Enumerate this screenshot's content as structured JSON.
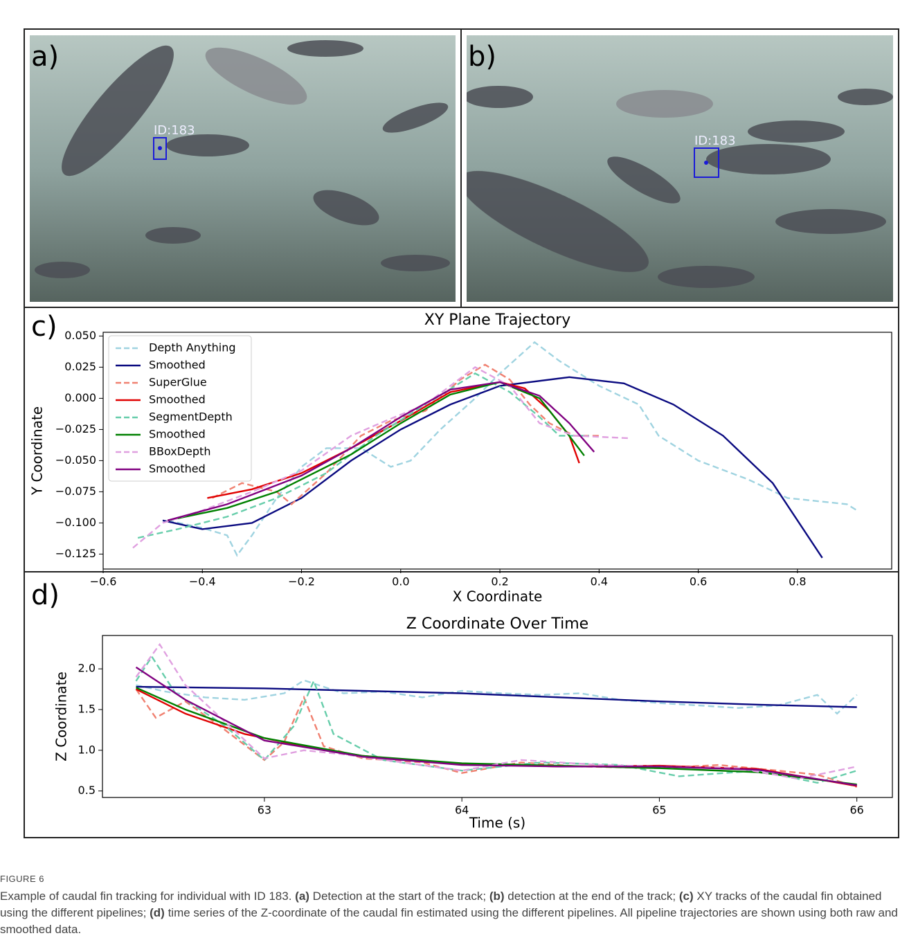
{
  "panels": [
    {
      "label": "a)",
      "id_label": "ID:183"
    },
    {
      "label": "b)",
      "id_label": "ID:183"
    }
  ],
  "chart_data": [
    {
      "type": "line",
      "panel_label": "c)",
      "title": "XY Plane Trajectory",
      "x_label": "X Coordinate",
      "y_label": "Y Coordinate",
      "xlim": [
        -0.6,
        0.99
      ],
      "ylim": [
        -0.137,
        0.053
      ],
      "xticks": [
        {
          "value": -0.6,
          "label": "−0.6"
        },
        {
          "value": -0.4,
          "label": "−0.4"
        },
        {
          "value": -0.2,
          "label": "−0.2"
        },
        {
          "value": 0,
          "label": "0.0"
        },
        {
          "value": 0.2,
          "label": "0.2"
        },
        {
          "value": 0.4,
          "label": "0.4"
        },
        {
          "value": 0.6,
          "label": "0.6"
        },
        {
          "value": 0.8,
          "label": "0.8"
        }
      ],
      "yticks": [
        {
          "value": 0.05,
          "label": "0.050"
        },
        {
          "value": 0.025,
          "label": "0.025"
        },
        {
          "value": 0,
          "label": "0.000"
        },
        {
          "value": -0.025,
          "label": "−0.025"
        },
        {
          "value": -0.05,
          "label": "−0.050"
        },
        {
          "value": -0.075,
          "label": "−0.075"
        },
        {
          "value": -0.1,
          "label": "−0.100"
        },
        {
          "value": -0.125,
          "label": "−0.125"
        }
      ],
      "legend": "upper left",
      "series": [
        {
          "name": "Depth Anything",
          "color": "#9fd3e0",
          "dashed": true,
          "x": [
            -0.47,
            -0.4,
            -0.35,
            -0.33,
            -0.3,
            -0.25,
            -0.2,
            -0.15,
            -0.08,
            -0.02,
            0.02,
            0.08,
            0.15,
            0.2,
            0.27,
            0.32,
            0.4,
            0.48,
            0.52,
            0.6,
            0.7,
            0.78,
            0.9,
            0.92
          ],
          "values": [
            -0.098,
            -0.104,
            -0.11,
            -0.126,
            -0.11,
            -0.08,
            -0.055,
            -0.04,
            -0.04,
            -0.055,
            -0.05,
            -0.025,
            0.0,
            0.02,
            0.045,
            0.03,
            0.01,
            -0.005,
            -0.03,
            -0.05,
            -0.065,
            -0.08,
            -0.085,
            -0.09
          ]
        },
        {
          "name": "Smoothed",
          "color": "#0a0a80",
          "dashed": false,
          "x": [
            -0.48,
            -0.4,
            -0.3,
            -0.2,
            -0.1,
            0.0,
            0.1,
            0.2,
            0.34,
            0.45,
            0.55,
            0.65,
            0.75,
            0.85
          ],
          "values": [
            -0.098,
            -0.105,
            -0.1,
            -0.08,
            -0.05,
            -0.025,
            -0.005,
            0.01,
            0.017,
            0.012,
            -0.005,
            -0.03,
            -0.068,
            -0.128
          ]
        },
        {
          "name": "SuperGlue",
          "color": "#f08070",
          "dashed": true,
          "x": [
            -0.38,
            -0.32,
            -0.25,
            -0.22,
            -0.15,
            -0.08,
            -0.02,
            0.05,
            0.12,
            0.17,
            0.22,
            0.26,
            0.3,
            0.35,
            0.4
          ],
          "values": [
            -0.08,
            -0.068,
            -0.075,
            -0.085,
            -0.06,
            -0.03,
            -0.018,
            -0.01,
            0.015,
            0.027,
            0.015,
            -0.005,
            -0.02,
            -0.03,
            -0.03
          ]
        },
        {
          "name": "Smoothed",
          "color": "#e00000",
          "dashed": false,
          "x": [
            -0.39,
            -0.3,
            -0.2,
            -0.1,
            0.0,
            0.1,
            0.2,
            0.25,
            0.3,
            0.34,
            0.36
          ],
          "values": [
            -0.08,
            -0.073,
            -0.06,
            -0.04,
            -0.018,
            0.005,
            0.013,
            0.008,
            -0.01,
            -0.03,
            -0.052
          ]
        },
        {
          "name": "SegmentDepth",
          "color": "#66cdaa",
          "dashed": true,
          "x": [
            -0.53,
            -0.45,
            -0.35,
            -0.25,
            -0.15,
            -0.05,
            0.05,
            0.15,
            0.22,
            0.28,
            0.32,
            0.38
          ],
          "values": [
            -0.112,
            -0.105,
            -0.095,
            -0.08,
            -0.06,
            -0.03,
            -0.005,
            0.02,
            0.005,
            -0.015,
            -0.03,
            -0.03
          ]
        },
        {
          "name": "Smoothed",
          "color": "#008000",
          "dashed": false,
          "x": [
            -0.47,
            -0.35,
            -0.25,
            -0.1,
            0.0,
            0.1,
            0.2,
            0.28,
            0.33,
            0.37
          ],
          "values": [
            -0.098,
            -0.088,
            -0.075,
            -0.045,
            -0.02,
            0.003,
            0.013,
            0.0,
            -0.025,
            -0.046
          ]
        },
        {
          "name": "BBoxDepth",
          "color": "#e0a0e0",
          "dashed": true,
          "x": [
            -0.54,
            -0.48,
            -0.4,
            -0.3,
            -0.2,
            -0.1,
            -0.03,
            0.05,
            0.15,
            0.22,
            0.28,
            0.35,
            0.46
          ],
          "values": [
            -0.12,
            -0.1,
            -0.09,
            -0.075,
            -0.058,
            -0.03,
            -0.018,
            -0.005,
            0.025,
            0.01,
            -0.02,
            -0.03,
            -0.032
          ]
        },
        {
          "name": "Smoothed",
          "color": "#800080",
          "dashed": false,
          "x": [
            -0.47,
            -0.35,
            -0.2,
            -0.1,
            0.0,
            0.1,
            0.2,
            0.28,
            0.34,
            0.39
          ],
          "values": [
            -0.098,
            -0.085,
            -0.062,
            -0.04,
            -0.015,
            0.007,
            0.013,
            0.002,
            -0.02,
            -0.043
          ]
        }
      ]
    },
    {
      "type": "line",
      "panel_label": "d)",
      "title": "Z Coordinate Over Time",
      "x_label": "Time (s)",
      "y_label": "Z Coordinate",
      "xlim": [
        62.18,
        66.18
      ],
      "ylim": [
        0.42,
        2.41
      ],
      "xticks": [
        63,
        64,
        65,
        66
      ],
      "yticks": [
        0.5,
        {
          "value": 1,
          "label": "1.0"
        },
        1.5,
        {
          "value": 2,
          "label": "2.0"
        }
      ],
      "series": [
        {
          "color": "#9fd3e0",
          "dashed": true,
          "x": [
            62.35,
            62.5,
            62.7,
            62.9,
            63.1,
            63.2,
            63.4,
            63.6,
            63.8,
            64,
            64.2,
            64.4,
            64.6,
            64.8,
            65,
            65.2,
            65.4,
            65.6,
            65.8,
            65.9,
            66
          ],
          "values": [
            1.8,
            1.72,
            1.65,
            1.62,
            1.7,
            1.86,
            1.7,
            1.72,
            1.65,
            1.73,
            1.7,
            1.68,
            1.7,
            1.62,
            1.58,
            1.55,
            1.52,
            1.55,
            1.68,
            1.45,
            1.68
          ]
        },
        {
          "color": "#0a0a80",
          "dashed": false,
          "x": [
            62.35,
            63,
            63.5,
            64,
            64.5,
            65,
            65.5,
            66
          ],
          "values": [
            1.78,
            1.76,
            1.73,
            1.7,
            1.65,
            1.6,
            1.56,
            1.53
          ]
        },
        {
          "color": "#f08070",
          "dashed": true,
          "x": [
            62.35,
            62.45,
            62.6,
            62.8,
            63,
            63.1,
            63.2,
            63.3,
            63.5,
            63.8,
            64,
            64.3,
            64.6,
            65,
            65.3,
            65.6,
            65.8,
            66
          ],
          "values": [
            1.75,
            1.4,
            1.6,
            1.25,
            0.88,
            1.1,
            1.65,
            1.05,
            0.9,
            0.85,
            0.72,
            0.85,
            0.8,
            0.78,
            0.82,
            0.75,
            0.7,
            0.55
          ]
        },
        {
          "color": "#e00000",
          "dashed": false,
          "x": [
            62.35,
            62.6,
            62.9,
            63.2,
            63.5,
            64,
            64.5,
            65,
            65.5,
            66
          ],
          "values": [
            1.75,
            1.45,
            1.2,
            1.05,
            0.93,
            0.83,
            0.8,
            0.81,
            0.77,
            0.56
          ]
        },
        {
          "color": "#66cdaa",
          "dashed": true,
          "x": [
            62.35,
            62.43,
            62.55,
            62.8,
            63,
            63.15,
            63.25,
            63.35,
            63.6,
            64,
            64.4,
            64.8,
            65.1,
            65.5,
            65.8,
            66
          ],
          "values": [
            1.85,
            2.15,
            1.7,
            1.3,
            0.88,
            1.3,
            1.85,
            1.2,
            0.88,
            0.75,
            0.85,
            0.82,
            0.68,
            0.75,
            0.6,
            0.75
          ]
        },
        {
          "color": "#008000",
          "dashed": false,
          "x": [
            62.35,
            62.6,
            63,
            63.5,
            64,
            64.5,
            65,
            65.5,
            66
          ],
          "values": [
            1.77,
            1.5,
            1.15,
            0.93,
            0.84,
            0.81,
            0.78,
            0.73,
            0.58
          ]
        },
        {
          "color": "#e0a0e0",
          "dashed": true,
          "x": [
            62.35,
            62.47,
            62.6,
            62.8,
            63,
            63.2,
            63.4,
            63.7,
            64,
            64.3,
            64.7,
            65,
            65.4,
            65.7,
            66
          ],
          "values": [
            1.9,
            2.3,
            1.8,
            1.35,
            0.9,
            1.0,
            0.95,
            0.85,
            0.75,
            0.88,
            0.82,
            0.8,
            0.78,
            0.65,
            0.8
          ]
        },
        {
          "color": "#800080",
          "dashed": false,
          "x": [
            62.35,
            62.6,
            63,
            63.5,
            64,
            64.5,
            65,
            65.5,
            66
          ],
          "values": [
            2.02,
            1.62,
            1.12,
            0.92,
            0.82,
            0.8,
            0.8,
            0.76,
            0.57
          ]
        }
      ]
    }
  ],
  "caption": {
    "figure_label": "FIGURE 6",
    "runs": [
      {
        "text": "Example of caudal fin tracking for individual with ID 183. ",
        "bold": false
      },
      {
        "text": "(a)",
        "bold": true
      },
      {
        "text": " Detection at the start of the track; ",
        "bold": false
      },
      {
        "text": "(b)",
        "bold": true
      },
      {
        "text": " detection at the end of the track; ",
        "bold": false
      },
      {
        "text": "(c)",
        "bold": true
      },
      {
        "text": " XY tracks of the caudal fin obtained using the different pipelines; ",
        "bold": false
      },
      {
        "text": "(d)",
        "bold": true
      },
      {
        "text": " time series of the Z-coordinate of the caudal fin estimated using the different pipelines. All pipeline trajectories are shown using both raw and smoothed data.",
        "bold": false
      }
    ]
  }
}
